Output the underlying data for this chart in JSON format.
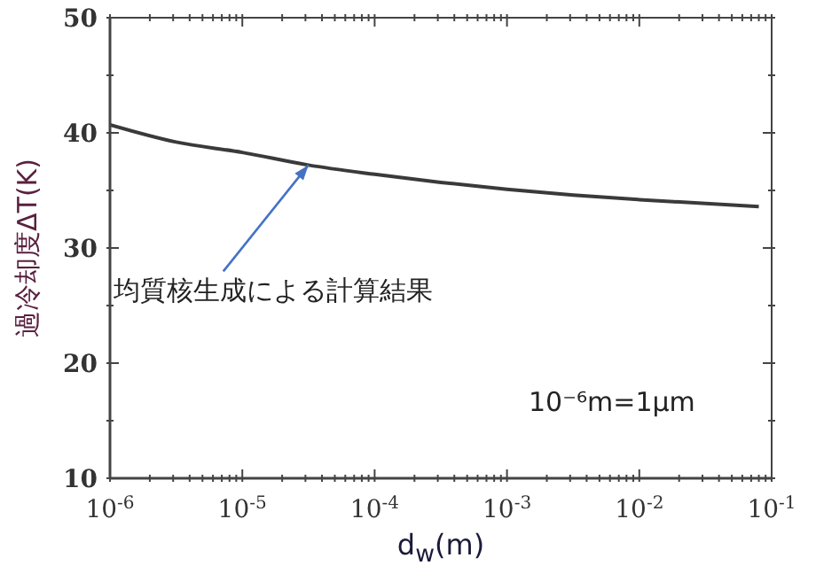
{
  "chart_data": {
    "type": "line",
    "xlabel": "d$_{w}$(m)",
    "ylabel": "過冷却度ΔT(K)",
    "log": "x",
    "x": [
      1e-06,
      3.16e-06,
      1e-05,
      3.16e-05,
      0.0001,
      0.000316,
      0.001,
      0.00316,
      0.01,
      0.08
    ],
    "series": [
      {
        "color": "#3a3a3a",
        "values": [
          40.7,
          39.2,
          38.3,
          37.2,
          36.4,
          35.7,
          35.1,
          34.6,
          34.2,
          33.6
        ]
      }
    ],
    "xlim": [
      1e-06,
      0.1
    ],
    "ylim": [
      10,
      50
    ],
    "xticks": [
      {
        "value": 1e-06,
        "label": "10$^{-6}$"
      },
      {
        "value": 1e-05,
        "label": "10$^{-5}$"
      },
      {
        "value": 0.0001,
        "label": "10$^{-4}$"
      },
      {
        "value": 0.001,
        "label": "10$^{-3}$"
      },
      {
        "value": 0.01,
        "label": "10$^{-2}$"
      },
      {
        "value": 0.1,
        "label": "10$^{-1}$"
      },
      {
        "value": 2e-06,
        "label": null
      },
      {
        "value": 3e-06,
        "label": null
      },
      {
        "value": 4e-06,
        "label": null
      },
      {
        "value": 5e-06,
        "label": null
      },
      {
        "value": 6e-06,
        "label": null
      },
      {
        "value": 7e-06,
        "label": null
      },
      {
        "value": 8e-06,
        "label": null
      },
      {
        "value": 9e-06,
        "label": null
      },
      {
        "value": 2e-05,
        "label": null
      },
      {
        "value": 3e-05,
        "label": null
      },
      {
        "value": 4e-05,
        "label": null
      },
      {
        "value": 5e-05,
        "label": null
      },
      {
        "value": 6e-05,
        "label": null
      },
      {
        "value": 7e-05,
        "label": null
      },
      {
        "value": 8e-05,
        "label": null
      },
      {
        "value": 9e-05,
        "label": null
      },
      {
        "value": 0.0002,
        "label": null
      },
      {
        "value": 0.0003,
        "label": null
      },
      {
        "value": 0.0004,
        "label": null
      },
      {
        "value": 0.0005,
        "label": null
      },
      {
        "value": 0.0006,
        "label": null
      },
      {
        "value": 0.0007,
        "label": null
      },
      {
        "value": 0.0008,
        "label": null
      },
      {
        "value": 0.0009,
        "label": null
      },
      {
        "value": 0.002,
        "label": null
      },
      {
        "value": 0.003,
        "label": null
      },
      {
        "value": 0.004,
        "label": null
      },
      {
        "value": 0.005,
        "label": null
      },
      {
        "value": 0.006,
        "label": null
      },
      {
        "value": 0.007,
        "label": null
      },
      {
        "value": 0.008,
        "label": null
      },
      {
        "value": 0.009,
        "label": null
      },
      {
        "value": 0.02,
        "label": null
      },
      {
        "value": 0.03,
        "label": null
      },
      {
        "value": 0.04,
        "label": null
      },
      {
        "value": 0.05,
        "label": null
      },
      {
        "value": 0.06,
        "label": null
      },
      {
        "value": 0.07,
        "label": null
      },
      {
        "value": 0.08,
        "label": null
      },
      {
        "value": 0.09,
        "label": null
      }
    ],
    "yticks": [
      10,
      20,
      30,
      40,
      50,
      {
        "value": 15,
        "label": null
      },
      {
        "value": 25,
        "label": null
      },
      {
        "value": 35,
        "label": null
      },
      {
        "value": 45,
        "label": null
      }
    ],
    "grid": false,
    "legend": false,
    "marker": "none",
    "line_style": "solid",
    "annotations": [
      {
        "text": "均質核生成による計算結果",
        "x": 3.16e-05,
        "y": 37.2
      },
      "10⁻⁶m=1μm"
    ]
  }
}
